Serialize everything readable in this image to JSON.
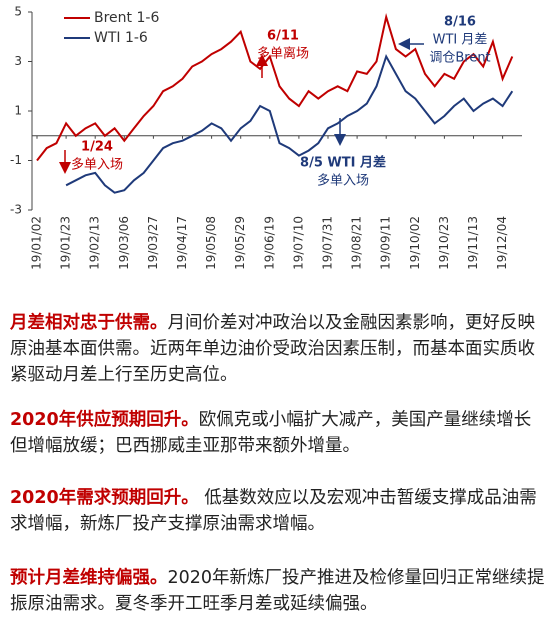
{
  "chart_data": {
    "type": "line",
    "categories": [
      "19/01/02",
      null,
      null,
      "19/01/23",
      null,
      null,
      "19/02/13",
      null,
      null,
      "19/03/06",
      null,
      null,
      "19/03/27",
      null,
      null,
      "19/04/17",
      null,
      null,
      "19/05/08",
      null,
      null,
      "19/05/29",
      null,
      null,
      "19/06/19",
      null,
      null,
      "19/07/10",
      null,
      null,
      "19/07/31",
      null,
      null,
      "19/08/21",
      null,
      null,
      "19/09/11",
      null,
      null,
      "19/10/02",
      null,
      null,
      "19/10/23",
      null,
      null,
      "19/11/13",
      null,
      null,
      "19/12/04",
      null
    ],
    "series": [
      {
        "name": "Brent 1-6",
        "color": "#c00000",
        "values": [
          -1.0,
          -0.5,
          -0.3,
          0.5,
          0.0,
          0.3,
          0.5,
          0.0,
          0.3,
          -0.2,
          0.3,
          0.8,
          1.2,
          1.8,
          2.0,
          2.3,
          2.8,
          3.0,
          3.3,
          3.5,
          3.8,
          4.2,
          3.0,
          2.7,
          3.2,
          2.0,
          1.5,
          1.2,
          1.8,
          1.5,
          1.8,
          2.0,
          1.8,
          2.6,
          2.5,
          3.0,
          4.8,
          3.5,
          3.2,
          3.5,
          2.5,
          2.0,
          2.5,
          2.3,
          3.0,
          3.3,
          2.8,
          3.8,
          2.3,
          3.2
        ]
      },
      {
        "name": "WTI 1-6",
        "color": "#1f3a7a",
        "values": [
          null,
          null,
          null,
          -2.0,
          -1.8,
          -1.6,
          -1.5,
          -2.0,
          -2.3,
          -2.2,
          -1.8,
          -1.5,
          -1.0,
          -0.5,
          -0.3,
          -0.2,
          0.0,
          0.2,
          0.5,
          0.3,
          -0.2,
          0.3,
          0.6,
          1.2,
          1.0,
          -0.3,
          -0.5,
          -0.8,
          -0.6,
          -0.3,
          0.3,
          0.5,
          0.8,
          1.0,
          1.3,
          2.0,
          3.2,
          2.5,
          1.8,
          1.5,
          1.0,
          0.5,
          0.8,
          1.2,
          1.5,
          1.0,
          1.3,
          1.5,
          1.2,
          1.8
        ]
      }
    ],
    "ylim": [
      -3,
      5
    ],
    "yticks": [
      -3,
      -1,
      1,
      3,
      5
    ],
    "annotations": [
      {
        "lines": [
          "1/24",
          "多单入场"
        ]
      },
      {
        "lines": [
          "6/11",
          "多单离场"
        ]
      },
      {
        "lines": [
          "8/5  WTI 月差",
          "多单入场"
        ]
      },
      {
        "lines": [
          "8/16",
          "WTI 月差",
          "调仓Brent"
        ]
      }
    ]
  },
  "paragraphs": [
    {
      "lead": "月差相对忠于供需。",
      "text": "月间价差对冲政治以及金融因素影响，更好反映原油基本面供需。近两年单边油价受政治因素压制，而基本面实质收紧驱动月差上行至历史高位。"
    },
    {
      "lead": "2020年供应预期回升。",
      "text": "欧佩克或小幅扩大减产，美国产量继续增长但增幅放缓；巴西挪威圭亚那带来额外增量。"
    },
    {
      "lead": "2020年需求预期回升。",
      "text": " 低基数效应以及宏观冲击暂缓支撑成品油需求增幅，新炼厂投产支撑原油需求增幅。"
    },
    {
      "lead": "预计月差维持偏强。",
      "text": "2020年新炼厂投产推进及检修量回归正常继续提振原油需求。夏冬季开工旺季月差或延续偏强。"
    }
  ]
}
